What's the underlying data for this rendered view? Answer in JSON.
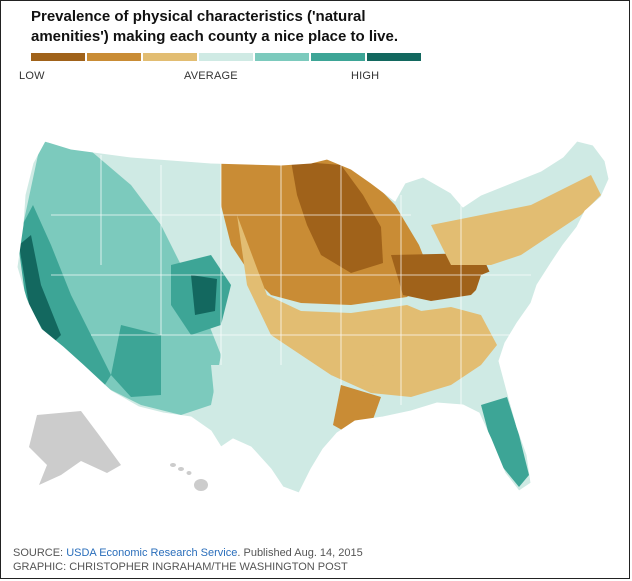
{
  "title_line1": "Prevalence of physical characteristics ('natural",
  "title_line2": "amenities') making each county a nice place to live.",
  "legend": {
    "low_label": "LOW",
    "average_label": "AVERAGE",
    "high_label": "HIGH",
    "colors": [
      "#a0621a",
      "#c98c35",
      "#e2bd72",
      "#cfeae4",
      "#7ccabd",
      "#3da596",
      "#13685f"
    ]
  },
  "map": {
    "subject": "United States counties shaded by natural amenities index",
    "alaska_color": "#cccccc",
    "hawaii_color": "#cccccc",
    "state_border_color": "#ffffff"
  },
  "footer": {
    "source_prefix": "SOURCE: ",
    "source_link": "USDA Economic Research Service",
    "source_suffix": ". Published Aug. 14, 2015",
    "graphic_credit": "GRAPHIC: CHRISTOPHER INGRAHAM/THE WASHINGTON POST"
  }
}
